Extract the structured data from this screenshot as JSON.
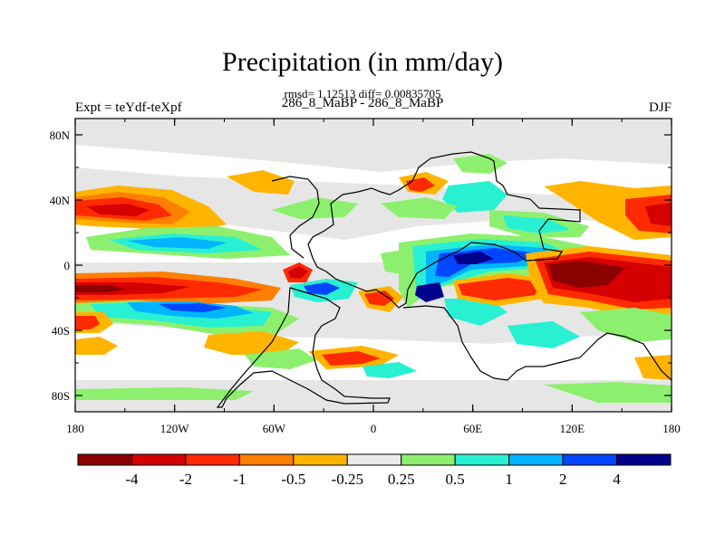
{
  "header": {
    "title": "Precipitation (in mm/day)",
    "stats": "rmsd= 1.12513 diff= 0.00835705",
    "case": "286_8_MaBP - 286_8_MaBP",
    "experiment": "Expt = teYdf-teXpf",
    "season": "DJF"
  },
  "map": {
    "lat_ticks": [
      {
        "label": "80N",
        "lat": 80
      },
      {
        "label": "40N",
        "lat": 40
      },
      {
        "label": "0",
        "lat": 0
      },
      {
        "label": "40S",
        "lat": -40
      },
      {
        "label": "80S",
        "lat": -80
      }
    ],
    "lon_ticks": [
      {
        "label": "180",
        "lon": -180
      },
      {
        "label": "120W",
        "lon": -120
      },
      {
        "label": "60W",
        "lon": -60
      },
      {
        "label": "0",
        "lon": 0
      },
      {
        "label": "60E",
        "lon": 60
      },
      {
        "label": "120E",
        "lon": 120
      },
      {
        "label": "180",
        "lon": 180
      }
    ],
    "background_color": "#e6e6e6"
  },
  "colorbar": {
    "colors": [
      "#8b0000",
      "#d50000",
      "#ff2a00",
      "#ff7f00",
      "#ffb400",
      "#ebebeb",
      "#8cf06e",
      "#28f0d2",
      "#00b4ff",
      "#0046ff",
      "#00008c"
    ],
    "labels": [
      "-4",
      "-2",
      "-1",
      "-0.5",
      "-0.25",
      "0.25",
      "0.5",
      "1",
      "2",
      "4"
    ]
  }
}
